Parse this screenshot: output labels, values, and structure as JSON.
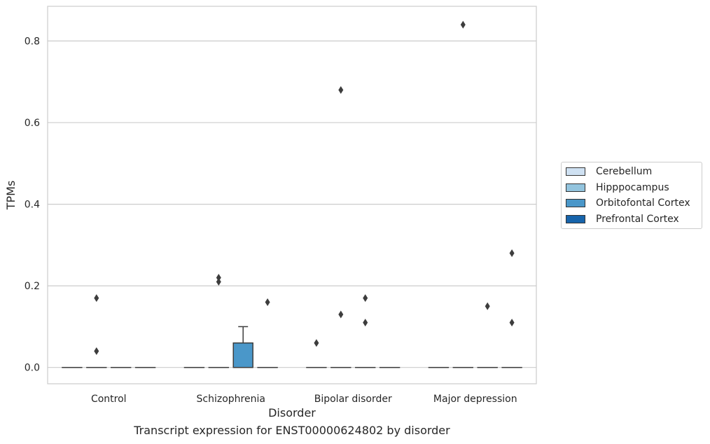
{
  "caption": "Transcript expression for ENST00000624802 by disorder",
  "chart_data": {
    "type": "box",
    "title": "",
    "xlabel": "Disorder",
    "ylabel": "TPMs",
    "categories": [
      "Control",
      "Schizophrenia",
      "Bipolar disorder",
      "Major depression"
    ],
    "ylim": [
      -0.04,
      0.885
    ],
    "yticks": [
      0.0,
      0.2,
      0.4,
      0.6,
      0.8
    ],
    "ytick_labels": [
      "0.0",
      "0.2",
      "0.4",
      "0.6",
      "0.8"
    ],
    "grid": true,
    "legend_position": "right",
    "series": [
      {
        "name": "Cerebellum",
        "color": "#cfe1f2"
      },
      {
        "name": "Hipppocampus",
        "color": "#93c4de"
      },
      {
        "name": "Orbitofontal Cortex",
        "color": "#4a97c9"
      },
      {
        "name": "Prefrontal Cortex",
        "color": "#1764ab"
      }
    ],
    "boxes": [
      {
        "category": "Control",
        "series": "Cerebellum",
        "q1": 0,
        "median": 0,
        "q3": 0,
        "whisker_low": 0,
        "whisker_high": 0,
        "outliers": []
      },
      {
        "category": "Control",
        "series": "Hipppocampus",
        "q1": 0,
        "median": 0,
        "q3": 0,
        "whisker_low": 0,
        "whisker_high": 0,
        "outliers": [
          0.04,
          0.17
        ]
      },
      {
        "category": "Control",
        "series": "Orbitofontal Cortex",
        "q1": 0,
        "median": 0,
        "q3": 0,
        "whisker_low": 0,
        "whisker_high": 0,
        "outliers": []
      },
      {
        "category": "Control",
        "series": "Prefrontal Cortex",
        "q1": 0,
        "median": 0,
        "q3": 0,
        "whisker_low": 0,
        "whisker_high": 0,
        "outliers": []
      },
      {
        "category": "Schizophrenia",
        "series": "Cerebellum",
        "q1": 0,
        "median": 0,
        "q3": 0,
        "whisker_low": 0,
        "whisker_high": 0,
        "outliers": []
      },
      {
        "category": "Schizophrenia",
        "series": "Hipppocampus",
        "q1": 0,
        "median": 0,
        "q3": 0,
        "whisker_low": 0,
        "whisker_high": 0,
        "outliers": [
          0.21,
          0.22
        ]
      },
      {
        "category": "Schizophrenia",
        "series": "Orbitofontal Cortex",
        "q1": 0,
        "median": 0,
        "q3": 0.06,
        "whisker_low": 0,
        "whisker_high": 0.1,
        "outliers": []
      },
      {
        "category": "Schizophrenia",
        "series": "Prefrontal Cortex",
        "q1": 0,
        "median": 0,
        "q3": 0,
        "whisker_low": 0,
        "whisker_high": 0,
        "outliers": [
          0.16
        ]
      },
      {
        "category": "Bipolar disorder",
        "series": "Cerebellum",
        "q1": 0,
        "median": 0,
        "q3": 0,
        "whisker_low": 0,
        "whisker_high": 0,
        "outliers": [
          0.06
        ]
      },
      {
        "category": "Bipolar disorder",
        "series": "Hipppocampus",
        "q1": 0,
        "median": 0,
        "q3": 0,
        "whisker_low": 0,
        "whisker_high": 0,
        "outliers": [
          0.13,
          0.68
        ]
      },
      {
        "category": "Bipolar disorder",
        "series": "Orbitofontal Cortex",
        "q1": 0,
        "median": 0,
        "q3": 0,
        "whisker_low": 0,
        "whisker_high": 0,
        "outliers": [
          0.11,
          0.17
        ]
      },
      {
        "category": "Bipolar disorder",
        "series": "Prefrontal Cortex",
        "q1": 0,
        "median": 0,
        "q3": 0,
        "whisker_low": 0,
        "whisker_high": 0,
        "outliers": []
      },
      {
        "category": "Major depression",
        "series": "Cerebellum",
        "q1": 0,
        "median": 0,
        "q3": 0,
        "whisker_low": 0,
        "whisker_high": 0,
        "outliers": []
      },
      {
        "category": "Major depression",
        "series": "Hipppocampus",
        "q1": 0,
        "median": 0,
        "q3": 0,
        "whisker_low": 0,
        "whisker_high": 0,
        "outliers": [
          0.84
        ]
      },
      {
        "category": "Major depression",
        "series": "Orbitofontal Cortex",
        "q1": 0,
        "median": 0,
        "q3": 0,
        "whisker_low": 0,
        "whisker_high": 0,
        "outliers": [
          0.15
        ]
      },
      {
        "category": "Major depression",
        "series": "Prefrontal Cortex",
        "q1": 0,
        "median": 0,
        "q3": 0,
        "whisker_low": 0,
        "whisker_high": 0,
        "outliers": [
          0.11,
          0.28
        ]
      }
    ]
  }
}
